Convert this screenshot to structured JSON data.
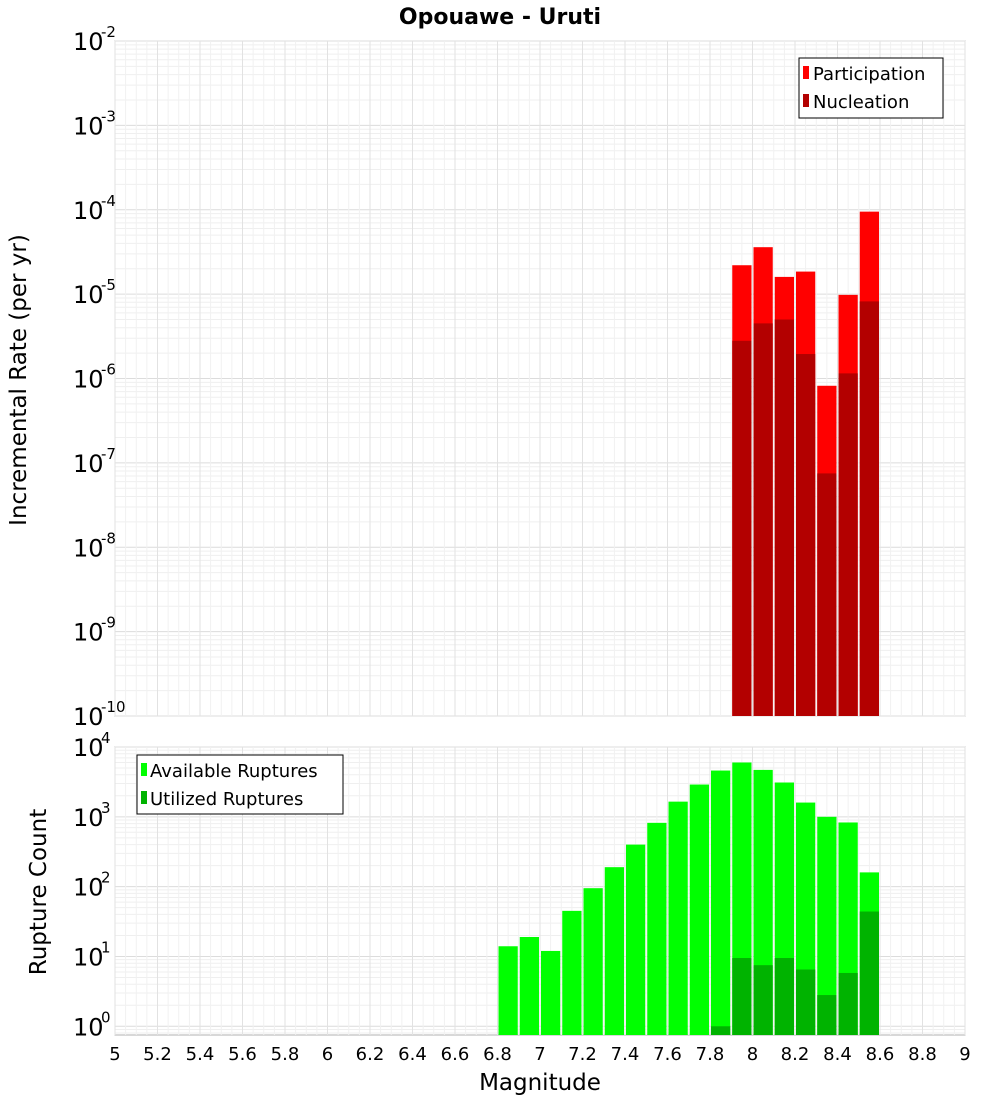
{
  "chart_data": {
    "title": "Opouawe - Uruti",
    "xlabel": "Magnitude",
    "xlim": [
      5,
      9
    ],
    "x_ticks": [
      "5",
      "5.2",
      "5.4",
      "5.6",
      "5.8",
      "6",
      "6.2",
      "6.4",
      "6.6",
      "6.8",
      "7",
      "7.2",
      "7.4",
      "7.6",
      "7.8",
      "8",
      "8.2",
      "8.4",
      "8.6",
      "8.8",
      "9"
    ],
    "bin_width": 0.1,
    "grid": true,
    "panels": [
      {
        "type": "bar",
        "yscale": "log",
        "ylabel": "Incremental Rate (per yr)",
        "ylim": [
          1e-10,
          0.01
        ],
        "y_ticks": [
          {
            "base": "10",
            "exp": "-2",
            "value": 0.01
          },
          {
            "base": "10",
            "exp": "-3",
            "value": 0.001
          },
          {
            "base": "10",
            "exp": "-4",
            "value": 0.0001
          },
          {
            "base": "10",
            "exp": "-5",
            "value": 1e-05
          },
          {
            "base": "10",
            "exp": "-6",
            "value": 1e-06
          },
          {
            "base": "10",
            "exp": "-7",
            "value": 1e-07
          },
          {
            "base": "10",
            "exp": "-8",
            "value": 1e-08
          },
          {
            "base": "10",
            "exp": "-9",
            "value": 1e-09
          },
          {
            "base": "10",
            "exp": "-10",
            "value": 1e-10
          }
        ],
        "legend_position": "top-right",
        "series": [
          {
            "name": "Participation",
            "color": "#ff0000",
            "x": [
              7.95,
              8.05,
              8.15,
              8.25,
              8.35,
              8.45,
              8.55
            ],
            "values": [
              2.2e-05,
              3.6e-05,
              1.6e-05,
              1.85e-05,
              8.2e-07,
              9.8e-06,
              9.5e-05
            ]
          },
          {
            "name": "Nucleation",
            "color": "#b30000",
            "x": [
              7.95,
              8.05,
              8.15,
              8.25,
              8.35,
              8.45,
              8.55
            ],
            "values": [
              2.8e-06,
              4.5e-06,
              5e-06,
              1.95e-06,
              7.5e-08,
              1.15e-06,
              8.2e-06
            ]
          }
        ]
      },
      {
        "type": "bar",
        "yscale": "log",
        "ylabel": "Rupture Count",
        "ylim": [
          0.75,
          10000
        ],
        "y_ticks": [
          {
            "base": "10",
            "exp": "4",
            "value": 10000
          },
          {
            "base": "10",
            "exp": "3",
            "value": 1000
          },
          {
            "base": "10",
            "exp": "2",
            "value": 100
          },
          {
            "base": "10",
            "exp": "1",
            "value": 10
          },
          {
            "base": "10",
            "exp": "0",
            "value": 1
          }
        ],
        "legend_position": "top-left",
        "series": [
          {
            "name": "Available Ruptures",
            "color": "#00ff00",
            "x": [
              6.85,
              6.95,
              7.05,
              7.15,
              7.25,
              7.35,
              7.45,
              7.55,
              7.65,
              7.75,
              7.85,
              7.95,
              8.05,
              8.15,
              8.25,
              8.35,
              8.45,
              8.55
            ],
            "values": [
              14,
              19,
              12,
              45,
              95,
              190,
              400,
              820,
              1650,
              2900,
              4600,
              6000,
              4700,
              3100,
              1600,
              1000,
              830,
              160
            ]
          },
          {
            "name": "Utilized Ruptures",
            "color": "#00b300",
            "x": [
              7.85,
              7.95,
              8.05,
              8.15,
              8.25,
              8.35,
              8.45,
              8.55
            ],
            "values": [
              1,
              9.5,
              7.5,
              9.5,
              6.5,
              2.8,
              5.8,
              44
            ]
          }
        ]
      }
    ]
  }
}
